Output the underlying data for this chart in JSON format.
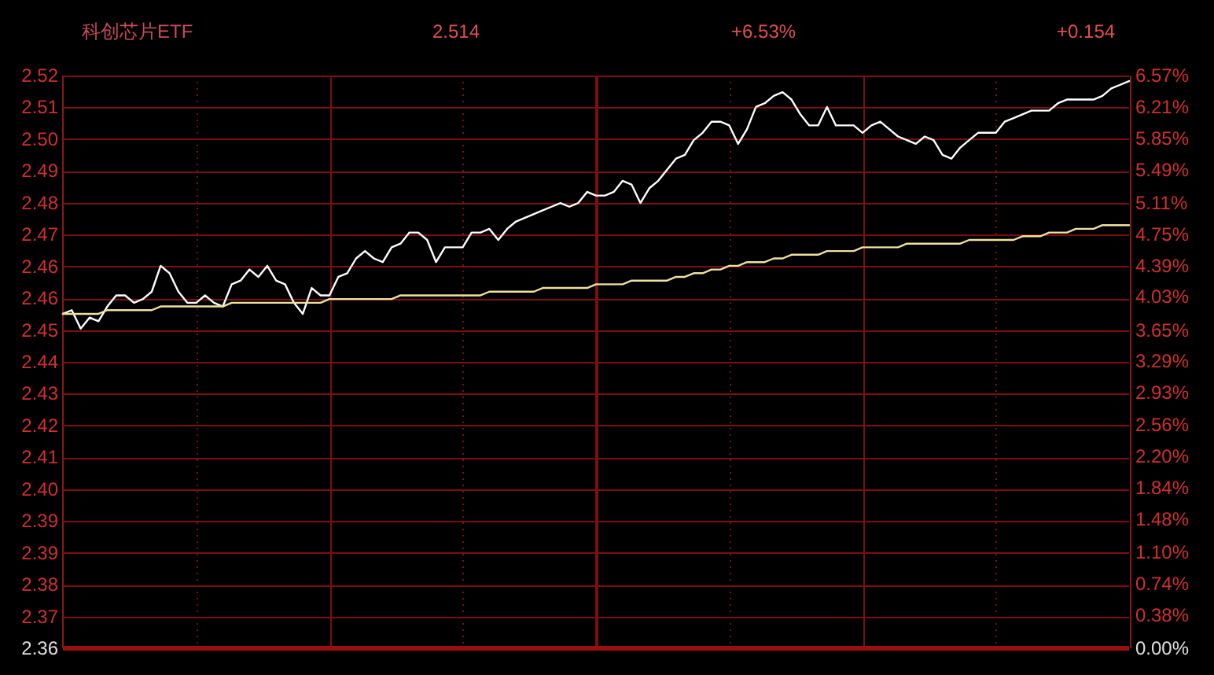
{
  "chart_data": {
    "type": "line",
    "title": "科创芯片ETF",
    "annotations": [
      "2.514",
      "+6.53%",
      "+0.154"
    ],
    "categories": [
      null,
      null,
      null,
      null,
      null,
      null,
      null,
      null,
      null,
      null,
      null,
      null,
      null,
      null,
      null,
      null,
      null,
      null,
      null,
      null,
      null,
      null,
      null,
      null,
      null,
      null,
      null,
      null,
      null,
      null,
      null,
      null,
      null,
      null,
      null,
      null,
      null,
      null,
      null,
      null,
      null,
      null,
      null,
      null,
      null,
      null,
      null,
      null,
      null,
      null,
      null,
      null,
      null,
      null,
      null,
      null,
      null,
      null,
      null,
      null,
      null,
      null,
      null,
      null,
      null,
      null,
      null,
      null,
      null,
      null,
      null,
      null,
      null,
      null,
      null,
      null,
      null,
      null,
      null,
      null,
      null,
      null,
      null,
      null,
      null,
      null,
      null,
      null,
      null,
      null,
      null,
      null,
      null,
      null,
      null,
      null,
      null,
      null,
      null,
      null,
      null,
      null,
      null,
      null,
      null,
      null,
      null,
      null,
      null,
      null,
      null,
      null,
      null,
      null,
      null,
      null,
      null,
      null,
      null,
      null,
      null
    ],
    "series": [
      {
        "color": "#ffffff",
        "values": [
          2.451,
          2.452,
          2.447,
          2.45,
          2.449,
          2.453,
          2.456,
          2.456,
          2.454,
          2.455,
          2.457,
          2.464,
          2.462,
          2.457,
          2.454,
          2.454,
          2.456,
          2.454,
          2.453,
          2.459,
          2.46,
          2.463,
          2.461,
          2.464,
          2.46,
          2.459,
          2.454,
          2.451,
          2.458,
          2.456,
          2.456,
          2.461,
          2.462,
          2.466,
          2.468,
          2.466,
          2.465,
          2.469,
          2.47,
          2.473,
          2.473,
          2.471,
          2.465,
          2.469,
          2.469,
          2.469,
          2.473,
          2.473,
          2.474,
          2.471,
          2.474,
          2.476,
          2.477,
          2.478,
          2.479,
          2.48,
          2.481,
          2.48,
          2.481,
          2.484,
          2.483,
          2.483,
          2.484,
          2.487,
          2.486,
          2.481,
          2.485,
          2.487,
          2.49,
          2.493,
          2.494,
          2.498,
          2.5,
          2.503,
          2.503,
          2.502,
          2.497,
          2.501,
          2.507,
          2.508,
          2.51,
          2.511,
          2.509,
          2.505,
          2.502,
          2.502,
          2.507,
          2.502,
          2.502,
          2.502,
          2.5,
          2.502,
          2.503,
          2.501,
          2.499,
          2.498,
          2.497,
          2.499,
          2.498,
          2.494,
          2.493,
          2.496,
          2.498,
          2.5,
          2.5,
          2.5,
          2.503,
          2.504,
          2.505,
          2.506,
          2.506,
          2.506,
          2.508,
          2.509,
          2.509,
          2.509,
          2.509,
          2.51,
          2.512,
          2.513,
          2.514
        ]
      },
      {
        "color": "#f0e0a0",
        "values": [
          2.451,
          2.451,
          2.451,
          2.451,
          2.451,
          2.452,
          2.452,
          2.452,
          2.452,
          2.452,
          2.452,
          2.453,
          2.453,
          2.453,
          2.453,
          2.453,
          2.453,
          2.453,
          2.453,
          2.454,
          2.454,
          2.454,
          2.454,
          2.454,
          2.454,
          2.454,
          2.454,
          2.454,
          2.454,
          2.454,
          2.455,
          2.455,
          2.455,
          2.455,
          2.455,
          2.455,
          2.455,
          2.455,
          2.456,
          2.456,
          2.456,
          2.456,
          2.456,
          2.456,
          2.456,
          2.456,
          2.456,
          2.456,
          2.457,
          2.457,
          2.457,
          2.457,
          2.457,
          2.457,
          2.458,
          2.458,
          2.458,
          2.458,
          2.458,
          2.458,
          2.459,
          2.459,
          2.459,
          2.459,
          2.46,
          2.46,
          2.46,
          2.46,
          2.46,
          2.461,
          2.461,
          2.462,
          2.462,
          2.463,
          2.463,
          2.464,
          2.464,
          2.465,
          2.465,
          2.465,
          2.466,
          2.466,
          2.467,
          2.467,
          2.467,
          2.467,
          2.468,
          2.468,
          2.468,
          2.468,
          2.469,
          2.469,
          2.469,
          2.469,
          2.469,
          2.47,
          2.47,
          2.47,
          2.47,
          2.47,
          2.47,
          2.47,
          2.471,
          2.471,
          2.471,
          2.471,
          2.471,
          2.471,
          2.472,
          2.472,
          2.472,
          2.473,
          2.473,
          2.473,
          2.474,
          2.474,
          2.474,
          2.475,
          2.475,
          2.475,
          2.475
        ]
      }
    ],
    "ylim": [
      2.3605,
      2.5155
    ],
    "yticks": [
      {
        "value": 2.3605,
        "label": "2.36"
      },
      {
        "value": 2.3691,
        "label": "2.37"
      },
      {
        "value": 2.3777,
        "label": "2.38"
      },
      {
        "value": 2.3863,
        "label": "2.39"
      },
      {
        "value": 2.3949,
        "label": "2.39"
      },
      {
        "value": 2.4036,
        "label": "2.40"
      },
      {
        "value": 2.4122,
        "label": "2.41"
      },
      {
        "value": 2.4208,
        "label": "2.42"
      },
      {
        "value": 2.4294,
        "label": "2.43"
      },
      {
        "value": 2.438,
        "label": "2.44"
      },
      {
        "value": 2.4466,
        "label": "2.45"
      },
      {
        "value": 2.4552,
        "label": "2.46"
      },
      {
        "value": 2.4638,
        "label": "2.46"
      },
      {
        "value": 2.4724,
        "label": "2.47"
      },
      {
        "value": 2.481,
        "label": "2.48"
      },
      {
        "value": 2.4897,
        "label": "2.49"
      },
      {
        "value": 2.4983,
        "label": "2.50"
      },
      {
        "value": 2.5069,
        "label": "2.51"
      },
      {
        "value": 2.5155,
        "label": "2.52"
      }
    ],
    "y2lim": [
      0,
      6.57
    ],
    "y2ticks": [
      {
        "value": 0,
        "label": "0.00%"
      },
      {
        "value": 0.38,
        "label": "0.38%"
      },
      {
        "value": 0.74,
        "label": "0.74%"
      },
      {
        "value": 1.1,
        "label": "1.10%"
      },
      {
        "value": 1.48,
        "label": "1.48%"
      },
      {
        "value": 1.84,
        "label": "1.84%"
      },
      {
        "value": 2.2,
        "label": "2.20%"
      },
      {
        "value": 2.56,
        "label": "2.56%"
      },
      {
        "value": 2.93,
        "label": "2.93%"
      },
      {
        "value": 3.29,
        "label": "3.29%"
      },
      {
        "value": 3.65,
        "label": "3.65%"
      },
      {
        "value": 4.03,
        "label": "4.03%"
      },
      {
        "value": 4.39,
        "label": "4.39%"
      },
      {
        "value": 4.75,
        "label": "4.75%"
      },
      {
        "value": 5.11,
        "label": "5.11%"
      },
      {
        "value": 5.49,
        "label": "5.49%"
      },
      {
        "value": 5.85,
        "label": "5.85%"
      },
      {
        "value": 6.21,
        "label": "6.21%"
      },
      {
        "value": 6.57,
        "label": "6.57%"
      }
    ],
    "grid": true,
    "marker": "none",
    "line_style": "solid"
  }
}
